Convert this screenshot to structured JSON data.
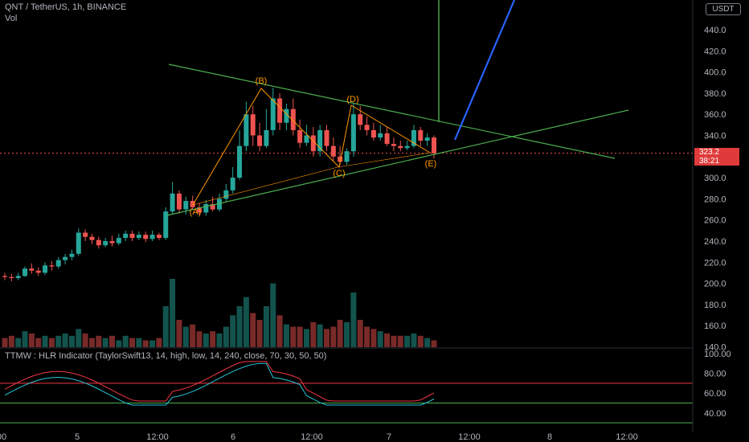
{
  "header": {
    "symbol_line": "QNT / TetherUS, 1h, BINANCE",
    "volume_label": "Vol",
    "currency_badge": "USDT",
    "last_price": "323.2",
    "countdown": "38:21"
  },
  "indicator": {
    "title": "TTMW : HLR Indicator (TaylorSwift13, 14, high, low, 14, 240, close, 70, 30, 50, 50)"
  },
  "colors": {
    "up": "#26a69a",
    "down": "#ef5350",
    "trendline": "#4caf50",
    "wave": "#ff9800",
    "blue_arrow": "#2962ff",
    "hlr_red": "#f23645",
    "hlr_teal": "#26c6da"
  },
  "chart_data": {
    "type": "candlestick",
    "price_axis": {
      "min": 140,
      "max": 460,
      "ticks": [
        "440.0",
        "420.0",
        "400.0",
        "380.0",
        "360.0",
        "340.0",
        "320.0",
        "300.0",
        "280.0",
        "260.0",
        "240.0",
        "220.0",
        "200.0",
        "180.0",
        "160.0",
        "140.0"
      ]
    },
    "indicator_axis": {
      "min": 30,
      "max": 100,
      "ticks": [
        "100.00",
        "80.00",
        "60.00",
        "40.00"
      ],
      "levels": [
        70,
        50,
        30
      ]
    },
    "time_axis": [
      "00",
      "5",
      "12:00",
      "6",
      "12:00",
      "7",
      "12:00",
      "8",
      "12:00"
    ],
    "candles": [
      [
        207,
        206,
        210,
        203
      ],
      [
        206,
        205,
        209,
        202
      ],
      [
        205,
        207,
        210,
        203
      ],
      [
        207,
        214,
        216,
        206
      ],
      [
        214,
        212,
        219,
        209
      ],
      [
        212,
        210,
        215,
        207
      ],
      [
        210,
        217,
        220,
        208
      ],
      [
        217,
        216,
        221,
        212
      ],
      [
        216,
        222,
        225,
        214
      ],
      [
        222,
        225,
        228,
        218
      ],
      [
        225,
        228,
        232,
        222
      ],
      [
        228,
        248,
        252,
        226
      ],
      [
        248,
        244,
        251,
        240
      ],
      [
        244,
        241,
        247,
        237
      ],
      [
        241,
        236,
        244,
        233
      ],
      [
        236,
        240,
        243,
        234
      ],
      [
        240,
        238,
        245,
        235
      ],
      [
        238,
        243,
        247,
        236
      ],
      [
        243,
        247,
        250,
        240
      ],
      [
        247,
        243,
        250,
        240
      ],
      [
        243,
        246,
        249,
        241
      ],
      [
        246,
        242,
        249,
        239
      ],
      [
        242,
        246,
        250,
        240
      ],
      [
        246,
        243,
        248,
        241
      ],
      [
        243,
        268,
        272,
        241
      ],
      [
        268,
        285,
        296,
        265
      ],
      [
        285,
        270,
        288,
        266
      ],
      [
        270,
        278,
        282,
        265
      ],
      [
        278,
        272,
        283,
        270
      ],
      [
        272,
        267,
        276,
        265
      ],
      [
        267,
        275,
        279,
        264
      ],
      [
        275,
        270,
        282,
        268
      ],
      [
        270,
        280,
        285,
        268
      ],
      [
        280,
        288,
        294,
        277
      ],
      [
        288,
        300,
        310,
        285
      ],
      [
        300,
        330,
        345,
        298
      ],
      [
        330,
        360,
        372,
        325
      ],
      [
        360,
        340,
        368,
        330
      ],
      [
        340,
        330,
        352,
        325
      ],
      [
        330,
        345,
        365,
        328
      ],
      [
        345,
        375,
        385,
        340
      ],
      [
        375,
        352,
        380,
        345
      ],
      [
        352,
        365,
        370,
        345
      ],
      [
        365,
        345,
        375,
        340
      ],
      [
        345,
        333,
        355,
        328
      ],
      [
        333,
        340,
        350,
        330
      ],
      [
        340,
        325,
        348,
        320
      ],
      [
        325,
        345,
        350,
        320
      ],
      [
        345,
        330,
        350,
        325
      ],
      [
        330,
        320,
        338,
        316
      ],
      [
        320,
        315,
        330,
        312
      ],
      [
        315,
        325,
        328,
        312
      ],
      [
        325,
        360,
        370,
        320
      ],
      [
        360,
        350,
        368,
        345
      ],
      [
        350,
        345,
        358,
        340
      ],
      [
        345,
        338,
        352,
        335
      ],
      [
        338,
        342,
        350,
        335
      ],
      [
        342,
        332,
        348,
        330
      ],
      [
        332,
        330,
        338,
        325
      ],
      [
        330,
        328,
        335,
        325
      ],
      [
        328,
        330,
        335,
        326
      ],
      [
        330,
        345,
        350,
        328
      ],
      [
        345,
        335,
        348,
        330
      ],
      [
        335,
        338,
        342,
        330
      ],
      [
        338,
        323,
        340,
        318
      ]
    ],
    "volumes": [
      4,
      5,
      4,
      7,
      6,
      4,
      5,
      4,
      5,
      6,
      5,
      8,
      6,
      4,
      5,
      4,
      5,
      3,
      5,
      4,
      4,
      3,
      3,
      4,
      18,
      30,
      12,
      9,
      10,
      7,
      6,
      7,
      6,
      9,
      14,
      18,
      22,
      15,
      12,
      18,
      28,
      14,
      10,
      9,
      9,
      8,
      11,
      10,
      8,
      9,
      12,
      11,
      24,
      12,
      9,
      8,
      7,
      6,
      5,
      5,
      5,
      6,
      5,
      4,
      3
    ],
    "annotations": {
      "wave_points": [
        "(A)",
        "(B)",
        "(C)",
        "(D)",
        "(E)"
      ]
    }
  }
}
